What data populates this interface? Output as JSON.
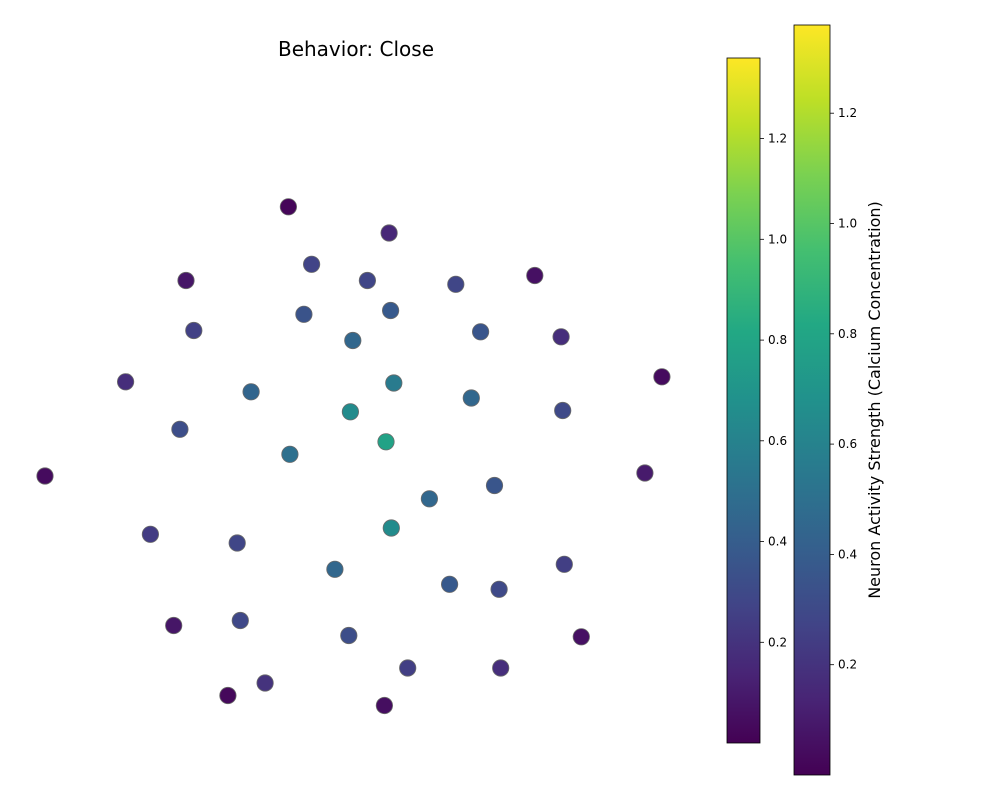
{
  "chart_data": {
    "type": "scatter",
    "title": "Behavior: Close",
    "xlabel": "",
    "ylabel": "",
    "axes_visible": false,
    "grid": false,
    "xlim": [
      -1.0,
      1.0
    ],
    "ylim": [
      -1.0,
      1.0
    ],
    "colormap": "viridis",
    "value_range": [
      0.0,
      1.36
    ],
    "marker_edge_color": "#6b6b6b",
    "points": [
      {
        "x": -0.215,
        "y": 0.905,
        "value": 0.02
      },
      {
        "x": 0.11,
        "y": 0.8,
        "value": 0.15
      },
      {
        "x": -0.14,
        "y": 0.675,
        "value": 0.27
      },
      {
        "x": -0.545,
        "y": 0.61,
        "value": 0.08
      },
      {
        "x": 0.04,
        "y": 0.61,
        "value": 0.28
      },
      {
        "x": 0.325,
        "y": 0.595,
        "value": 0.28
      },
      {
        "x": 0.58,
        "y": 0.63,
        "value": 0.06
      },
      {
        "x": -0.165,
        "y": 0.475,
        "value": 0.35
      },
      {
        "x": 0.115,
        "y": 0.49,
        "value": 0.38
      },
      {
        "x": -0.52,
        "y": 0.41,
        "value": 0.26
      },
      {
        "x": 0.405,
        "y": 0.405,
        "value": 0.36
      },
      {
        "x": 0.665,
        "y": 0.385,
        "value": 0.18
      },
      {
        "x": -0.007,
        "y": 0.37,
        "value": 0.45
      },
      {
        "x": 0.99,
        "y": 0.225,
        "value": 0.04
      },
      {
        "x": -0.74,
        "y": 0.205,
        "value": 0.18
      },
      {
        "x": -0.335,
        "y": 0.165,
        "value": 0.44
      },
      {
        "x": 0.125,
        "y": 0.2,
        "value": 0.56
      },
      {
        "x": 0.375,
        "y": 0.14,
        "value": 0.45
      },
      {
        "x": -0.015,
        "y": 0.085,
        "value": 0.65
      },
      {
        "x": 0.67,
        "y": 0.09,
        "value": 0.3
      },
      {
        "x": -0.565,
        "y": 0.015,
        "value": 0.32
      },
      {
        "x": 0.1,
        "y": -0.035,
        "value": 0.78
      },
      {
        "x": -0.21,
        "y": -0.085,
        "value": 0.5
      },
      {
        "x": 0.935,
        "y": -0.16,
        "value": 0.1
      },
      {
        "x": -1.0,
        "y": -0.172,
        "value": 0.04
      },
      {
        "x": 0.45,
        "y": -0.21,
        "value": 0.36
      },
      {
        "x": 0.24,
        "y": -0.263,
        "value": 0.45
      },
      {
        "x": 0.117,
        "y": -0.38,
        "value": 0.65
      },
      {
        "x": -0.66,
        "y": -0.405,
        "value": 0.24
      },
      {
        "x": -0.38,
        "y": -0.44,
        "value": 0.28
      },
      {
        "x": 0.675,
        "y": -0.525,
        "value": 0.25
      },
      {
        "x": -0.065,
        "y": -0.545,
        "value": 0.45
      },
      {
        "x": 0.305,
        "y": -0.605,
        "value": 0.38
      },
      {
        "x": 0.465,
        "y": -0.625,
        "value": 0.3
      },
      {
        "x": -0.585,
        "y": -0.77,
        "value": 0.08
      },
      {
        "x": -0.37,
        "y": -0.75,
        "value": 0.29
      },
      {
        "x": -0.02,
        "y": -0.81,
        "value": 0.32
      },
      {
        "x": 0.73,
        "y": -0.815,
        "value": 0.06
      },
      {
        "x": 0.17,
        "y": -0.94,
        "value": 0.25
      },
      {
        "x": 0.47,
        "y": -0.94,
        "value": 0.18
      },
      {
        "x": -0.29,
        "y": -1.0,
        "value": 0.2
      },
      {
        "x": -0.41,
        "y": -1.05,
        "value": 0.03
      },
      {
        "x": 0.095,
        "y": -1.09,
        "value": 0.05
      }
    ],
    "colorbars": [
      {
        "label": "Neuron Activity Strength (Calcium Concentration)",
        "range": [
          0.0,
          1.36
        ],
        "ticks": [
          0.2,
          0.4,
          0.6,
          0.8,
          1.0,
          1.2
        ],
        "tick_labels": [
          "0.2",
          "0.4",
          "0.6",
          "0.8",
          "1.0",
          "1.2"
        ]
      },
      {
        "label": "Neuron Activity Strength (Calcium Concentration)",
        "range": [
          0.0,
          1.36
        ],
        "ticks": [
          0.2,
          0.4,
          0.6,
          0.8,
          1.0,
          1.2
        ],
        "tick_labels": [
          "0.2",
          "0.4",
          "0.6",
          "0.8",
          "1.0",
          "1.2"
        ]
      }
    ]
  }
}
